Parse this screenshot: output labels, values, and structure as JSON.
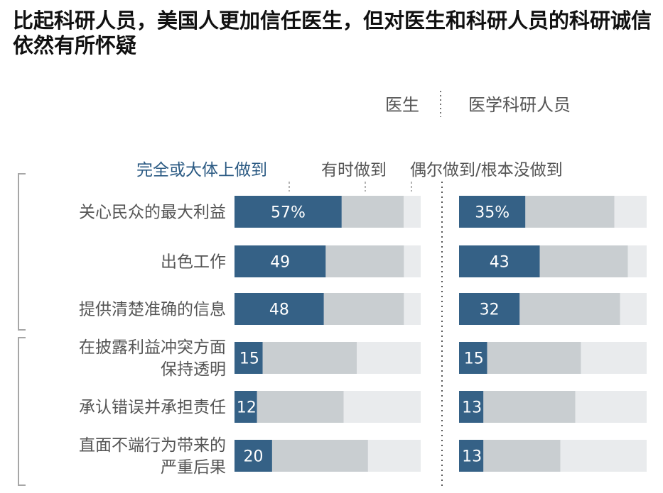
{
  "title": "比起科研人员，美国人更加信任医生，但对医生和科研人员的科研诚信依然有所怀疑",
  "colors": {
    "dark": "#356186",
    "mid": "#c9ced1",
    "light": "#e9ebed",
    "text": "#555555",
    "legend_dark": "#2b5a83"
  },
  "chart_data": {
    "type": "bar",
    "stacked": true,
    "orientation": "horizontal",
    "groups": [
      "医生",
      "医学科研人员"
    ],
    "legend": [
      "完全或大体上做到",
      "有时做到",
      "偶尔做到/根本没做到"
    ],
    "categories": [
      "关心民众的最大利益",
      "出色工作",
      "提供清楚准确的信息",
      "在披露利益冲突方面保持透明",
      "承认错误并承担责任",
      "直面不端行为带来的严重后果"
    ],
    "category_lines": [
      [
        "关心民众的最大利益"
      ],
      [
        "出色工作"
      ],
      [
        "提供清楚准确的信息"
      ],
      [
        "在披露利益冲突方面",
        "保持透明"
      ],
      [
        "承认错误并承担责任"
      ],
      [
        "直面不端行为带来的",
        "严重后果"
      ]
    ],
    "series": [
      {
        "group": "医生",
        "values": [
          [
            57,
            33,
            9
          ],
          [
            49,
            42,
            9
          ],
          [
            48,
            43,
            9
          ],
          [
            15,
            50,
            34
          ],
          [
            12,
            46,
            41
          ],
          [
            20,
            51,
            28
          ]
        ],
        "labels": [
          "57%",
          "49",
          "48",
          "15",
          "12",
          "20"
        ]
      },
      {
        "group": "医学科研人员",
        "values": [
          [
            35,
            47,
            17
          ],
          [
            43,
            47,
            10
          ],
          [
            32,
            53,
            14
          ],
          [
            15,
            50,
            35
          ],
          [
            13,
            49,
            38
          ],
          [
            13,
            41,
            46
          ]
        ],
        "labels": [
          "35%",
          "43",
          "32",
          "15",
          "13",
          "13"
        ]
      }
    ],
    "xlim": [
      0,
      100
    ]
  }
}
